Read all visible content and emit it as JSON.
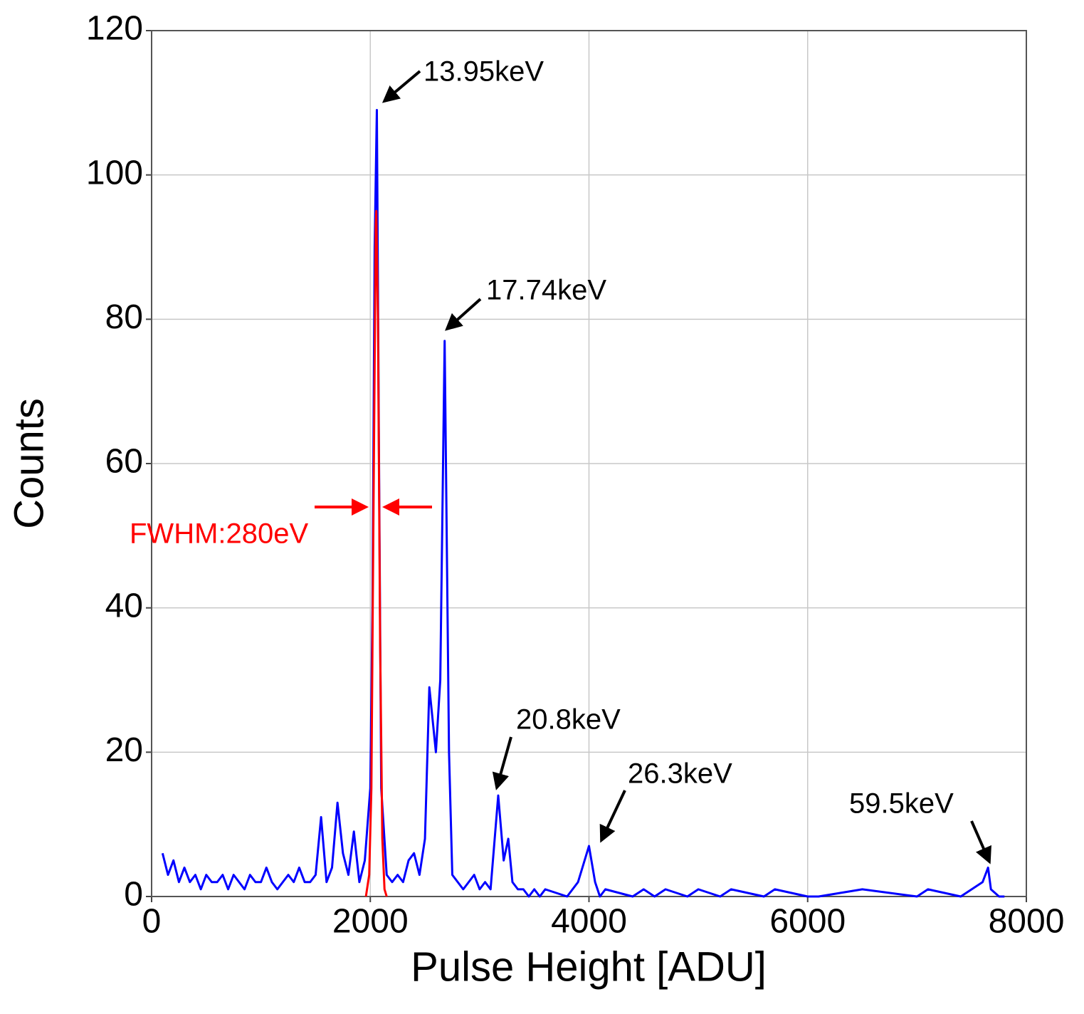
{
  "chart_data": {
    "type": "line",
    "xlabel": "Pulse Height [ADU]",
    "ylabel": "Counts",
    "xlim": [
      0,
      8000
    ],
    "xticks": [
      0,
      2000,
      4000,
      6000,
      8000
    ],
    "ylim": [
      0,
      120
    ],
    "yticks": [
      0,
      20,
      40,
      60,
      80,
      100,
      120
    ],
    "grid": true,
    "series": [
      {
        "color": "#0000ff",
        "x": [
          100,
          150,
          200,
          250,
          300,
          350,
          400,
          450,
          500,
          550,
          600,
          650,
          700,
          750,
          800,
          850,
          900,
          950,
          1000,
          1050,
          1100,
          1150,
          1200,
          1250,
          1300,
          1350,
          1400,
          1450,
          1500,
          1550,
          1600,
          1650,
          1700,
          1750,
          1800,
          1850,
          1900,
          1950,
          2000,
          2020,
          2040,
          2060,
          2080,
          2100,
          2150,
          2200,
          2250,
          2300,
          2350,
          2400,
          2450,
          2500,
          2540,
          2600,
          2640,
          2680,
          2720,
          2750,
          2800,
          2850,
          2900,
          2950,
          3000,
          3050,
          3100,
          3170,
          3220,
          3262,
          3300,
          3350,
          3400,
          3450,
          3500,
          3550,
          3600,
          3800,
          3900,
          4000,
          4056,
          4100,
          4150,
          4400,
          4500,
          4600,
          4700,
          4900,
          5000,
          5200,
          5300,
          5600,
          5700,
          6000,
          6100,
          6500,
          7000,
          7100,
          7400,
          7500,
          7600,
          7650,
          7676,
          7750,
          7800
        ],
        "values": [
          6,
          3,
          5,
          2,
          4,
          2,
          3,
          1,
          3,
          2,
          2,
          3,
          1,
          3,
          2,
          1,
          3,
          2,
          2,
          4,
          2,
          1,
          2,
          3,
          2,
          4,
          2,
          2,
          3,
          11,
          2,
          4,
          13,
          6,
          3,
          9,
          2,
          5,
          15,
          40,
          90,
          109,
          60,
          15,
          3,
          2,
          3,
          2,
          5,
          6,
          3,
          8,
          29,
          20,
          30,
          77,
          20,
          3,
          2,
          1,
          2,
          3,
          1,
          2,
          1,
          14,
          5,
          8,
          2,
          1,
          1,
          0,
          1,
          0,
          1,
          0,
          2,
          7,
          2,
          0,
          1,
          0,
          1,
          0,
          1,
          0,
          1,
          0,
          1,
          0,
          1,
          0,
          0,
          1,
          0,
          1,
          0,
          1,
          2,
          4,
          1,
          0,
          0
        ]
      },
      {
        "color": "#ff0000",
        "x": [
          1960,
          1990,
          2010,
          2030,
          2050,
          2055,
          2070,
          2090,
          2110,
          2130,
          2150
        ],
        "values": [
          0,
          3,
          15,
          55,
          93,
          95,
          80,
          35,
          8,
          1,
          0
        ]
      }
    ],
    "annotations": [
      "13.95keV",
      "17.74keV",
      "20.8keV",
      "26.3keV",
      "59.5keV",
      "FWHM:280eV"
    ]
  }
}
